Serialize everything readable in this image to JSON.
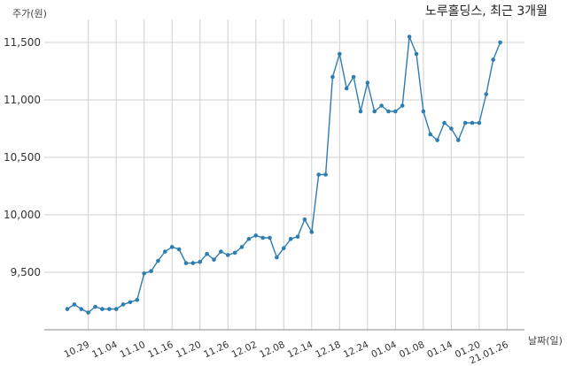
{
  "chart_data": {
    "type": "line",
    "title": "노루홀딩스, 최근 3개월",
    "ylabel": "주가(원)",
    "xlabel": "날짜(일)",
    "ylim": [
      9000,
      11700
    ],
    "yticks": [
      9500,
      10000,
      10500,
      11000,
      11500
    ],
    "ytick_labels": [
      "9,500",
      "10,000",
      "10,500",
      "11,000",
      "11,500"
    ],
    "grid": true,
    "x_tick_labels": [
      "10.29",
      "11.04",
      "11.10",
      "11.16",
      "11.20",
      "11.26",
      "12.02",
      "12.08",
      "12.14",
      "12.18",
      "12.24",
      "01.04",
      "01.08",
      "01.14",
      "01.20",
      "21.01.26"
    ],
    "x_tick_indices": [
      3,
      7,
      11,
      15,
      19,
      23,
      27,
      31,
      35,
      39,
      43,
      47,
      51,
      55,
      59,
      63
    ],
    "series": [
      {
        "color": "#2e7db0",
        "values": [
          9180,
          9220,
          9180,
          9150,
          9200,
          9180,
          9180,
          9180,
          9220,
          9240,
          9260,
          9490,
          9510,
          9600,
          9680,
          9720,
          9700,
          9580,
          9580,
          9590,
          9660,
          9610,
          9680,
          9650,
          9670,
          9720,
          9790,
          9820,
          9800,
          9800,
          9630,
          9710,
          9790,
          9810,
          9960,
          9850,
          10350,
          10350,
          11200,
          11400,
          11100,
          11200,
          10900,
          11150,
          10900,
          10950,
          10900,
          10900,
          10950,
          11550,
          11400,
          10900,
          10700,
          10650,
          10800,
          10750,
          10650,
          10800,
          10800,
          10800,
          11050,
          11350,
          11500
        ]
      }
    ]
  }
}
